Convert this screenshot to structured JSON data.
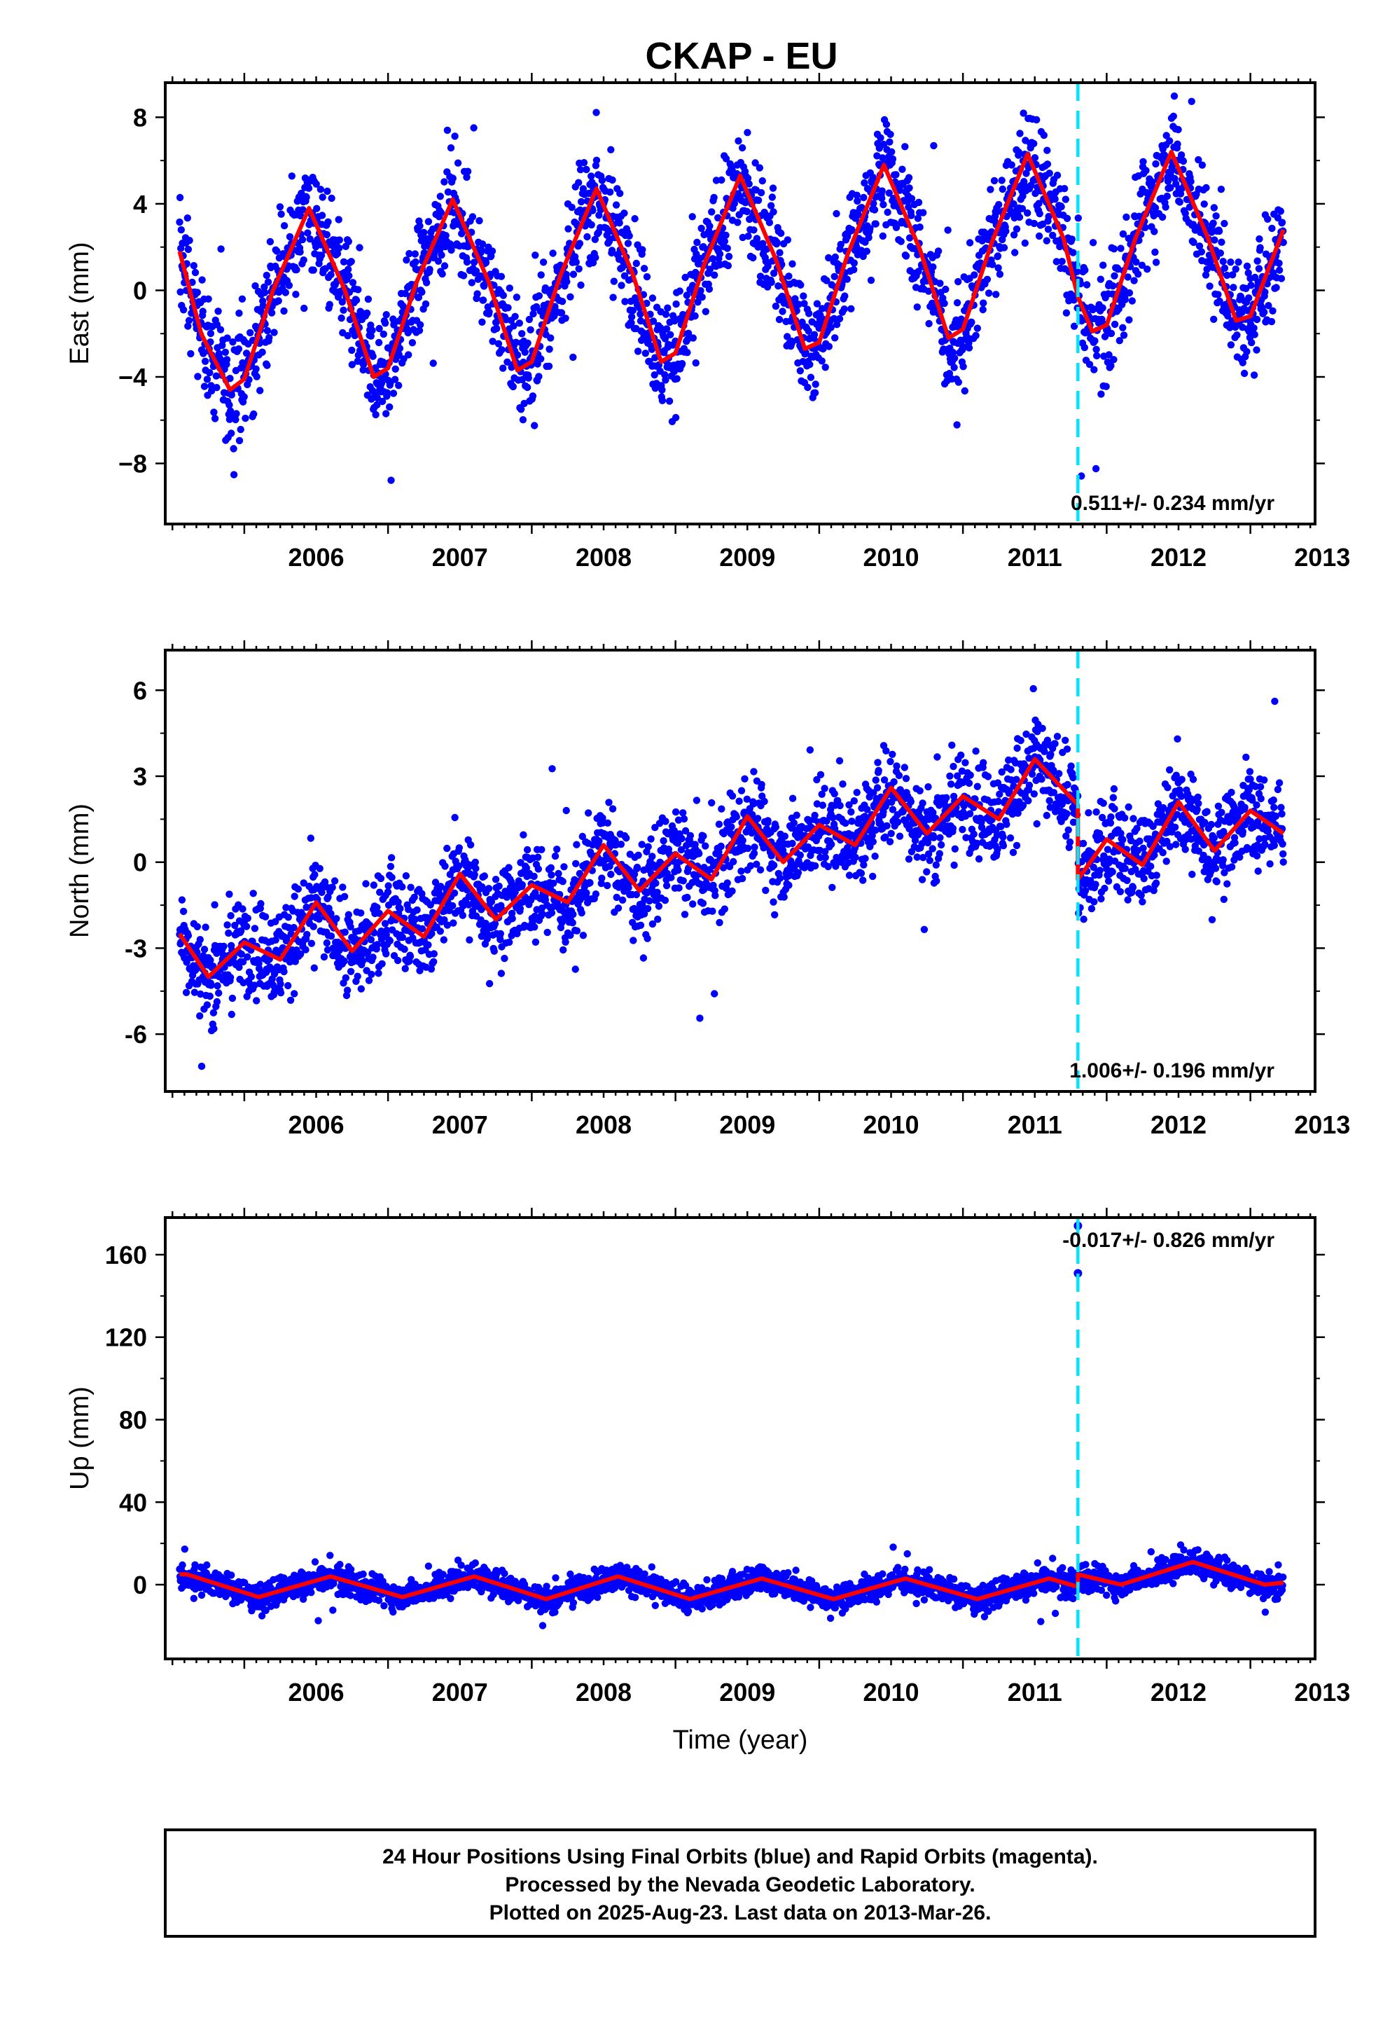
{
  "title": "CKAP - EU",
  "colors": {
    "points": "#0000ff",
    "model": "#ff0000",
    "event": "#00e5ff",
    "frame": "#000000"
  },
  "footnote": [
    "24 Hour Positions Using Final Orbits (blue) and Rapid Orbits (magenta).",
    "Processed by the Nevada Geodetic Laboratory.",
    "Plotted on 2025-Aug-23. Last data on 2013-Mar-26."
  ],
  "chart_data": [
    {
      "type": "scatter",
      "title": "",
      "xlabel": "",
      "ylabel": "East (mm)",
      "xlim": [
        2005.45,
        2013.45
      ],
      "ylim": [
        -10.8,
        9.6
      ],
      "yticks": [
        -8,
        -4,
        0,
        4,
        8
      ],
      "ytick_labels": [
        "−8",
        "−4",
        "0",
        "4",
        "8"
      ],
      "xticks": [
        2006,
        2007,
        2008,
        2009,
        2010,
        2011,
        2012,
        2013
      ],
      "xtick_labels": [
        "2006",
        "2007",
        "2008",
        "2009",
        "2010",
        "2011",
        "2012",
        "2013"
      ],
      "grid": false,
      "event_line_x": 2011.8,
      "rate_text": "0.511+/- 0.234 mm/yr",
      "rate_position": "bottom-right",
      "data_range": [
        2005.55,
        2013.23
      ],
      "series": [
        {
          "kind": "points",
          "daily_positions": "approx. 2700 daily solutions, scatter about model ±2 mm"
        },
        {
          "kind": "model",
          "x": [
            2005.55,
            2005.7,
            2005.9,
            2006.0,
            2006.2,
            2006.45,
            2006.7,
            2006.9,
            2007.0,
            2007.2,
            2007.45,
            2007.7,
            2007.9,
            2008.0,
            2008.2,
            2008.45,
            2008.7,
            2008.9,
            2009.0,
            2009.2,
            2009.45,
            2009.7,
            2009.9,
            2010.0,
            2010.2,
            2010.45,
            2010.7,
            2010.9,
            2011.0,
            2011.2,
            2011.45,
            2011.7,
            2011.8,
            2011.9,
            2012.0,
            2012.2,
            2012.45,
            2012.7,
            2012.9,
            2013.0,
            2013.23
          ],
          "y": [
            1.8,
            -2.0,
            -4.6,
            -4.1,
            0.0,
            3.8,
            0.0,
            -4.0,
            -3.6,
            0.4,
            4.2,
            0.4,
            -3.7,
            -3.3,
            0.7,
            4.7,
            0.8,
            -3.3,
            -2.9,
            1.2,
            5.3,
            1.4,
            -2.7,
            -2.4,
            1.7,
            5.8,
            1.9,
            -2.2,
            -1.8,
            2.2,
            6.3,
            2.4,
            -0.3,
            -1.9,
            -1.6,
            2.4,
            6.4,
            2.5,
            -1.4,
            -1.2,
            2.8
          ]
        }
      ]
    },
    {
      "type": "scatter",
      "title": "",
      "xlabel": "",
      "ylabel": "North (mm)",
      "xlim": [
        2005.45,
        2013.45
      ],
      "ylim": [
        -8.0,
        7.4
      ],
      "yticks": [
        -6,
        -3,
        0,
        3,
        6
      ],
      "ytick_labels": [
        "-6",
        "-3",
        "0",
        "3",
        "6"
      ],
      "xticks": [
        2006,
        2007,
        2008,
        2009,
        2010,
        2011,
        2012,
        2013
      ],
      "xtick_labels": [
        "2006",
        "2007",
        "2008",
        "2009",
        "2010",
        "2011",
        "2012",
        "2013"
      ],
      "grid": false,
      "event_line_x": 2011.8,
      "rate_text": "1.006+/- 0.196 mm/yr",
      "rate_position": "bottom-right",
      "data_range": [
        2005.55,
        2013.23
      ],
      "series": [
        {
          "kind": "points",
          "daily_positions": "approx. 2700 daily solutions, scatter about model ±1.3 mm"
        },
        {
          "kind": "model",
          "x": [
            2005.55,
            2005.75,
            2006.0,
            2006.25,
            2006.5,
            2006.75,
            2007.0,
            2007.25,
            2007.5,
            2007.75,
            2008.0,
            2008.25,
            2008.5,
            2008.75,
            2009.0,
            2009.25,
            2009.5,
            2009.75,
            2010.0,
            2010.25,
            2010.5,
            2010.75,
            2011.0,
            2011.25,
            2011.5,
            2011.8,
            2011.8,
            2012.0,
            2012.25,
            2012.5,
            2012.75,
            2013.0,
            2013.23
          ],
          "y": [
            -2.5,
            -4.0,
            -2.8,
            -3.4,
            -1.4,
            -3.1,
            -1.7,
            -2.6,
            -0.4,
            -2.0,
            -0.8,
            -1.4,
            0.6,
            -1.0,
            0.3,
            -0.6,
            1.6,
            0.0,
            1.3,
            0.6,
            2.6,
            1.0,
            2.3,
            1.5,
            3.6,
            2.0,
            -0.6,
            0.8,
            -0.1,
            2.1,
            0.4,
            1.8,
            1.0
          ]
        }
      ]
    },
    {
      "type": "scatter",
      "title": "",
      "xlabel": "Time (year)",
      "ylabel": "Up (mm)",
      "xlim": [
        2005.45,
        2013.45
      ],
      "ylim": [
        -36,
        178
      ],
      "yticks": [
        0,
        40,
        80,
        120,
        160
      ],
      "ytick_labels": [
        "0",
        "40",
        "80",
        "120",
        "160"
      ],
      "xticks": [
        2006,
        2007,
        2008,
        2009,
        2010,
        2011,
        2012,
        2013
      ],
      "xtick_labels": [
        "2006",
        "2007",
        "2008",
        "2009",
        "2010",
        "2011",
        "2012",
        "2013"
      ],
      "grid": false,
      "event_line_x": 2011.8,
      "rate_text": "-0.017+/- 0.826 mm/yr",
      "rate_position": "top-right",
      "data_range": [
        2005.55,
        2013.23
      ],
      "outliers": [
        {
          "x": 2011.8,
          "y": 174
        },
        {
          "x": 2011.8,
          "y": 151
        }
      ],
      "series": [
        {
          "kind": "points",
          "daily_positions": "approx. 2700 daily solutions, scatter about model ±5 mm"
        },
        {
          "kind": "model",
          "x": [
            2005.55,
            2005.6,
            2006.1,
            2006.6,
            2007.1,
            2007.6,
            2008.1,
            2008.6,
            2009.1,
            2009.6,
            2010.1,
            2010.6,
            2011.1,
            2011.6,
            2011.8,
            2011.8,
            2012.1,
            2012.6,
            2013.1,
            2013.23
          ],
          "y": [
            5,
            5,
            -6,
            4,
            -6,
            4,
            -7,
            4,
            -7,
            3,
            -7,
            3,
            -7,
            3,
            -1,
            5,
            0,
            11,
            0,
            1
          ]
        }
      ]
    }
  ]
}
